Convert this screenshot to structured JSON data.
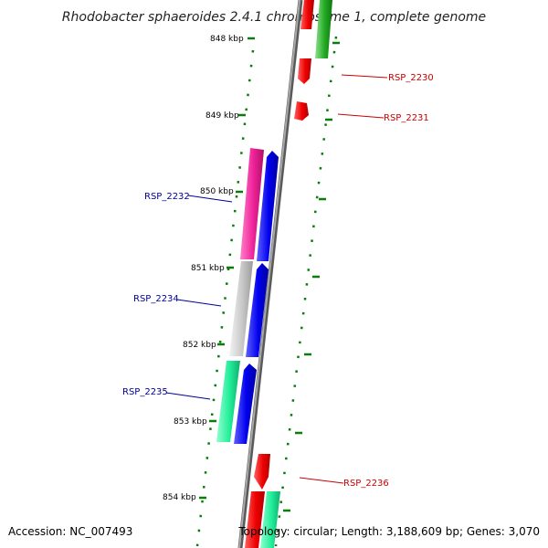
{
  "title": "Rhodobacter sphaeroides 2.4.1 chromosome 1, complete genome",
  "footer": {
    "accession": "Accession: NC_007493",
    "topology": "Topology: circular; Length: 3,188,609 bp; Genes: 3,070"
  },
  "colors": {
    "forward_label": "#cc0000",
    "reverse_label": "#000099",
    "tick_green": "#0a7d0a",
    "backbone": "#888888"
  },
  "kbp_labels": [
    "848 kbp",
    "849 kbp",
    "850 kbp",
    "851 kbp",
    "852 kbp",
    "853 kbp",
    "854 kbp"
  ],
  "gene_labels": {
    "rsp_2230": "RSP_2230",
    "rsp_2231": "RSP_2231",
    "rsp_2232": "RSP_2232",
    "rsp_2234": "RSP_2234",
    "rsp_2235": "RSP_2235",
    "rsp_2236": "RSP_2236"
  }
}
